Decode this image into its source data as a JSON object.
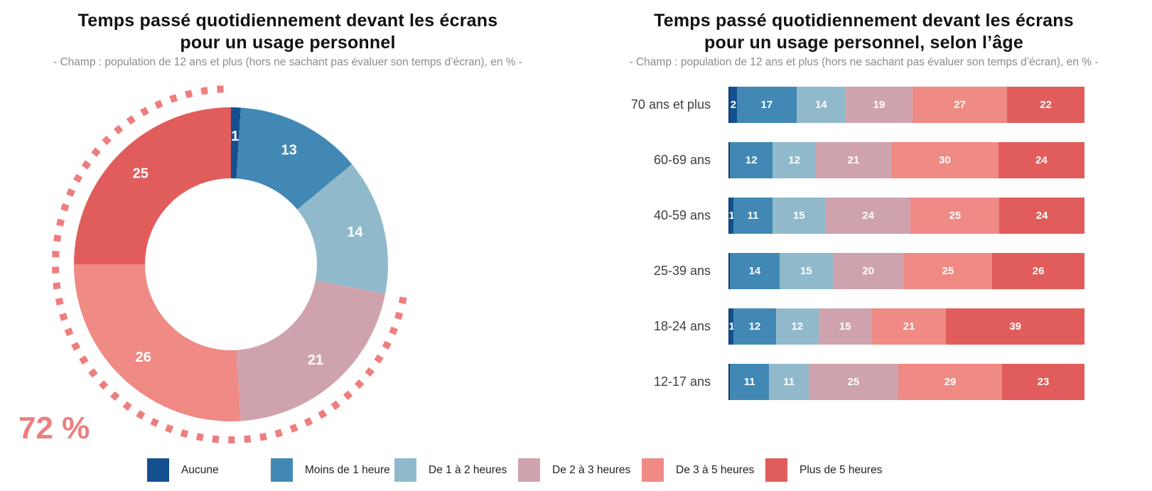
{
  "colors": {
    "highlight": "#EE7E7E",
    "axis_line": "#123D66",
    "title_text": "#111111",
    "subtitle_text": "#8C8C8C",
    "value_label_text": "#FFFFFF"
  },
  "legend": {
    "items": [
      {
        "label": "Aucune",
        "color": "#14508F"
      },
      {
        "label": "Moins de 1 heure",
        "color": "#4189B4"
      },
      {
        "label": "De 1 à 2 heures",
        "color": "#90BACC"
      },
      {
        "label": "De 2 à 3 heures",
        "color": "#CFA3AD"
      },
      {
        "label": "De 3 à 5 heures",
        "color": "#EF8A85"
      },
      {
        "label": "Plus de 5 heures",
        "color": "#E15D5B"
      }
    ]
  },
  "chart_data": [
    {
      "type": "pie",
      "subtype": "donut",
      "title_line1": "Temps passé quotidiennement devant les écrans",
      "title_line2": "pour un usage personnel",
      "subtitle": "- Champ : population de 12 ans et plus (hors ne sachant pas évaluer son temps d’écran), en % -",
      "categories": [
        "Aucune",
        "Moins de 1 heure",
        "De 1 à 2 heures",
        "De 2 à 3 heures",
        "De 3 à 5 heures",
        "Plus de 5 heures"
      ],
      "values": [
        1,
        13,
        14,
        21,
        26,
        25
      ],
      "unit": "%",
      "start_angle_deg": 0,
      "direction": "clockwise",
      "annotation": {
        "text": "72 %",
        "covers_percent": 72,
        "covers_categories": [
          "De 2 à 3 heures",
          "De 3 à 5 heures",
          "Plus de 5 heures"
        ],
        "style": "dotted-arc"
      }
    },
    {
      "type": "bar",
      "stacked": true,
      "orientation": "horizontal",
      "title_line1": "Temps passé quotidiennement devant les écrans",
      "title_line2": "pour un usage personnel, selon l’âge",
      "subtitle": "- Champ : population de 12 ans et plus (hors ne sachant pas évaluer son temps d’écran), en % -",
      "categories": [
        "70 ans et plus",
        "60-69 ans",
        "40-59 ans",
        "25-39 ans",
        "18-24 ans",
        "12-17 ans"
      ],
      "series": [
        {
          "name": "Aucune",
          "values": [
            2,
            0,
            1,
            0,
            1,
            0
          ]
        },
        {
          "name": "Moins de 1 heure",
          "values": [
            17,
            12,
            11,
            14,
            12,
            11
          ]
        },
        {
          "name": "De 1 à 2 heures",
          "values": [
            14,
            12,
            15,
            15,
            12,
            11
          ]
        },
        {
          "name": "De 2 à 3 heures",
          "values": [
            19,
            21,
            24,
            20,
            15,
            25
          ]
        },
        {
          "name": "De 3 à 5 heures",
          "values": [
            27,
            30,
            25,
            25,
            21,
            29
          ]
        },
        {
          "name": "Plus de 5 heures",
          "values": [
            22,
            24,
            24,
            26,
            39,
            23
          ]
        }
      ],
      "unit": "%",
      "legend_position": "bottom"
    }
  ]
}
